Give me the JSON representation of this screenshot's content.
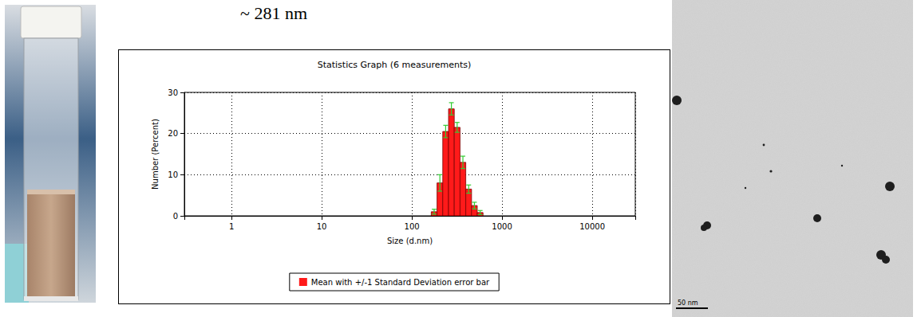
{
  "heading": "~ 281 nm",
  "chart_data": {
    "type": "bar",
    "title": "Statistics Graph (6 measurements)",
    "x_label": "Size (d.nm)",
    "y_label": "Number (Percent)",
    "bins": [
      164,
      190,
      220,
      255,
      295,
      342,
      396,
      459,
      531,
      615
    ],
    "series": [
      {
        "name": "Mean with +/-1 Standard Deviation error bar",
        "color": "#ff1a1a",
        "values": [
          1,
          8,
          20.5,
          26,
          21.5,
          13,
          6.5,
          2.5,
          0.8
        ],
        "error": [
          0.6,
          2,
          1.5,
          1.5,
          1.2,
          1.5,
          1,
          0.8,
          0.5
        ]
      }
    ],
    "log": "x",
    "xlim": [
      0.3,
      30000
    ],
    "xticks": [
      1,
      10,
      100,
      1000,
      10000
    ],
    "ylim": [
      0,
      30
    ],
    "yticks": [
      0,
      10,
      20,
      30
    ],
    "grid": true,
    "legend": "bottom"
  },
  "tem_image": {
    "scale_bar": "50 nm"
  }
}
